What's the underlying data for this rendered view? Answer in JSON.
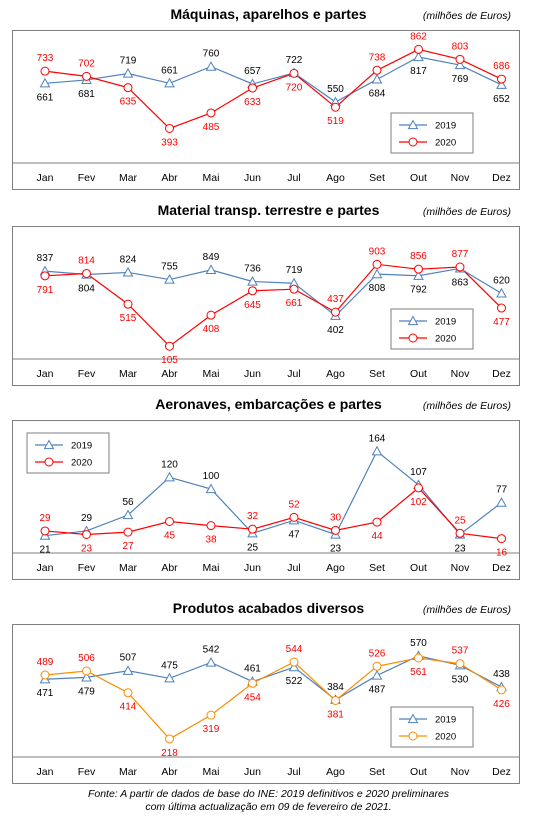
{
  "chart_data": [
    {
      "type": "line",
      "title": "Máquinas, aparelhos e partes",
      "unit_note": "(milhões de Euros)",
      "categories": [
        "Jan",
        "Fev",
        "Mar",
        "Abr",
        "Mai",
        "Jun",
        "Jul",
        "Ago",
        "Set",
        "Out",
        "Nov",
        "Dez"
      ],
      "series": [
        {
          "name": "2019",
          "color": "#4f81bd",
          "marker": "triangle",
          "values": [
            661,
            681,
            719,
            661,
            760,
            657,
            722,
            550,
            684,
            817,
            769,
            652
          ]
        },
        {
          "name": "2020",
          "color": "#ff0000",
          "marker": "circle",
          "values": [
            733,
            702,
            635,
            393,
            485,
            633,
            720,
            519,
            738,
            862,
            803,
            686
          ]
        }
      ],
      "label_pos": [
        [
          "below",
          "below",
          "above",
          "above",
          "above",
          "above",
          "above",
          "above",
          "below",
          "below",
          "below",
          "below"
        ],
        [
          "above",
          "above",
          "below",
          "below",
          "below",
          "below",
          "below",
          "below",
          "above",
          "above",
          "above",
          "above"
        ]
      ],
      "ylim": [
        200,
        900
      ],
      "legend_position": "bottom-right"
    },
    {
      "type": "line",
      "title": "Material transp. terrestre e partes",
      "unit_note": "(milhões de Euros)",
      "categories": [
        "Jan",
        "Fev",
        "Mar",
        "Abr",
        "Mai",
        "Jun",
        "Jul",
        "Ago",
        "Set",
        "Out",
        "Nov",
        "Dez"
      ],
      "series": [
        {
          "name": "2019",
          "color": "#4f81bd",
          "marker": "triangle",
          "values": [
            837,
            804,
            824,
            755,
            849,
            736,
            719,
            402,
            808,
            792,
            863,
            620
          ]
        },
        {
          "name": "2020",
          "color": "#ff0000",
          "marker": "circle",
          "values": [
            791,
            814,
            515,
            105,
            408,
            645,
            661,
            437,
            903,
            856,
            877,
            477
          ]
        }
      ],
      "label_pos": [
        [
          "above",
          "below",
          "above",
          "above",
          "above",
          "above",
          "above",
          "below",
          "below",
          "below",
          "below",
          "above"
        ],
        [
          "below",
          "above",
          "below",
          "below",
          "below",
          "below",
          "below",
          "above",
          "above",
          "above",
          "above",
          "below"
        ]
      ],
      "ylim": [
        0,
        1150
      ],
      "legend_position": "bottom-right"
    },
    {
      "type": "line",
      "title": "Aeronaves, embarcações e partes",
      "unit_note": "(milhões de Euros)",
      "categories": [
        "Jan",
        "Fev",
        "Mar",
        "Abr",
        "Mai",
        "Jun",
        "Jul",
        "Ago",
        "Set",
        "Out",
        "Nov",
        "Dez"
      ],
      "series": [
        {
          "name": "2019",
          "color": "#4f81bd",
          "marker": "triangle",
          "values": [
            21,
            29,
            56,
            120,
            100,
            25,
            47,
            23,
            164,
            107,
            23,
            77
          ]
        },
        {
          "name": "2020",
          "color": "#ff0000",
          "marker": "circle",
          "values": [
            29,
            23,
            27,
            45,
            38,
            32,
            52,
            30,
            44,
            102,
            25,
            16
          ]
        }
      ],
      "label_pos": [
        [
          "below",
          "above",
          "above",
          "above",
          "above",
          "below",
          "below",
          "below",
          "above",
          "above",
          "below",
          "above"
        ],
        [
          "above",
          "below",
          "below",
          "below",
          "below",
          "above",
          "above",
          "above",
          "below",
          "below",
          "above",
          "below"
        ]
      ],
      "ylim": [
        -5,
        195
      ],
      "legend_position": "top-left"
    },
    {
      "type": "line",
      "title": "Produtos acabados diversos",
      "unit_note": "(milhões de Euros)",
      "categories": [
        "Jan",
        "Fev",
        "Mar",
        "Abr",
        "Mai",
        "Jun",
        "Jul",
        "Ago",
        "Set",
        "Out",
        "Nov",
        "Dez"
      ],
      "series": [
        {
          "name": "2019",
          "color": "#4f81bd",
          "marker": "triangle",
          "values": [
            471,
            479,
            507,
            475,
            542,
            461,
            522,
            384,
            487,
            570,
            530,
            438
          ]
        },
        {
          "name": "2020",
          "color": "#ff8c00",
          "marker": "circle",
          "values": [
            489,
            506,
            414,
            218,
            319,
            454,
            544,
            381,
            526,
            561,
            537,
            426
          ]
        }
      ],
      "label_pos": [
        [
          "below",
          "below",
          "above",
          "above",
          "above",
          "above",
          "below",
          "above",
          "below",
          "above",
          "below",
          "above"
        ],
        [
          "above",
          "above",
          "below",
          "below",
          "below",
          "below",
          "above",
          "below",
          "above",
          "below",
          "above",
          "below"
        ]
      ],
      "ylim": [
        150,
        650
      ],
      "legend_position": "bottom-right"
    }
  ],
  "footer": {
    "line1": "Fonte: A partir de dados de base do INE: 2019 definitivos e 2020 preliminares",
    "line2": "com última actualização em 09 de fevereiro de 2021."
  }
}
